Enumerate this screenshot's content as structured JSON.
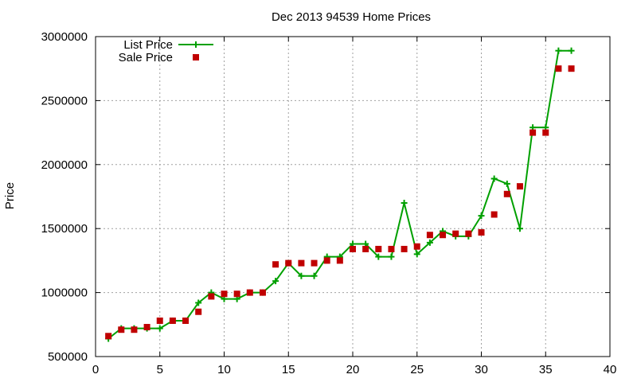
{
  "chart_data": {
    "type": "line",
    "title": "Dec 2013 94539 Home Prices",
    "xlabel": "",
    "ylabel": "Price",
    "xlim": [
      0,
      40
    ],
    "ylim": [
      500000,
      3000000
    ],
    "xticks": [
      0,
      5,
      10,
      15,
      20,
      25,
      30,
      35,
      40
    ],
    "yticks": [
      500000,
      1000000,
      1500000,
      2000000,
      2500000,
      3000000
    ],
    "grid": true,
    "legend_position": "top-left",
    "colors": {
      "list": "#00a000",
      "sale": "#c00000",
      "grid": "#a0a0a0"
    },
    "series": [
      {
        "name": "List Price",
        "style": "line-plus",
        "x": [
          1,
          2,
          3,
          4,
          5,
          6,
          7,
          8,
          9,
          10,
          11,
          12,
          13,
          14,
          15,
          16,
          17,
          18,
          19,
          20,
          21,
          22,
          23,
          24,
          25,
          26,
          27,
          28,
          29,
          30,
          31,
          32,
          33,
          34,
          35,
          36,
          37
        ],
        "values": [
          640000,
          720000,
          720000,
          720000,
          720000,
          780000,
          780000,
          920000,
          1000000,
          950000,
          950000,
          1000000,
          1000000,
          1090000,
          1230000,
          1130000,
          1130000,
          1280000,
          1280000,
          1380000,
          1380000,
          1280000,
          1280000,
          1700000,
          1300000,
          1390000,
          1480000,
          1440000,
          1440000,
          1600000,
          1890000,
          1850000,
          1500000,
          2290000,
          2290000,
          2890000,
          2890000
        ]
      },
      {
        "name": "Sale Price",
        "style": "square",
        "x": [
          1,
          2,
          3,
          4,
          5,
          6,
          7,
          8,
          9,
          10,
          11,
          12,
          13,
          14,
          15,
          16,
          17,
          18,
          19,
          20,
          21,
          22,
          23,
          24,
          25,
          26,
          27,
          28,
          29,
          30,
          31,
          32,
          33,
          34,
          35,
          36,
          37
        ],
        "values": [
          660000,
          710000,
          710000,
          730000,
          780000,
          780000,
          780000,
          850000,
          970000,
          990000,
          990000,
          1000000,
          1000000,
          1220000,
          1230000,
          1230000,
          1230000,
          1250000,
          1250000,
          1340000,
          1340000,
          1340000,
          1340000,
          1340000,
          1360000,
          1450000,
          1450000,
          1460000,
          1460000,
          1470000,
          1610000,
          1770000,
          1830000,
          2250000,
          2250000,
          2750000,
          2750000
        ]
      }
    ]
  }
}
